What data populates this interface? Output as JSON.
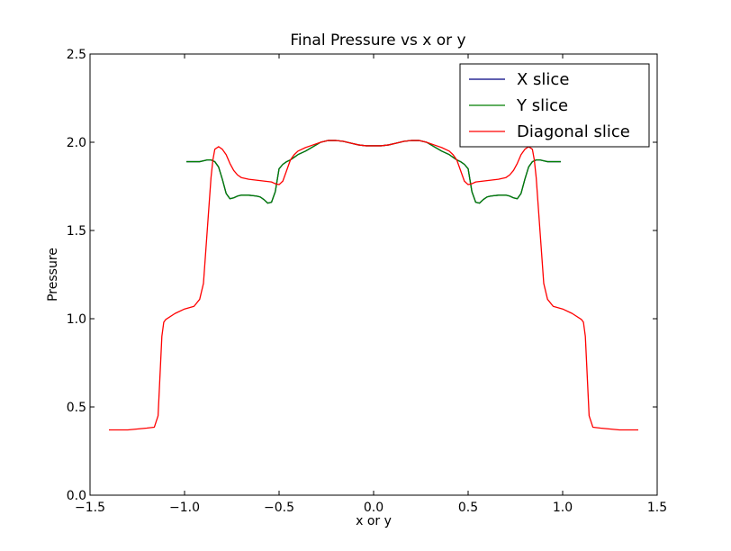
{
  "chart_data": {
    "type": "line",
    "title": "Final Pressure vs x or y",
    "xlabel": "x or y",
    "ylabel": "Pressure",
    "xlim": [
      -1.5,
      1.5
    ],
    "ylim": [
      0.0,
      2.5
    ],
    "xticks": [
      -1.5,
      -1.0,
      -0.5,
      0.0,
      0.5,
      1.0,
      1.5
    ],
    "xtick_labels": [
      "−1.5",
      "−1.0",
      "−0.5",
      "0.0",
      "0.5",
      "1.0",
      "1.5"
    ],
    "yticks": [
      0.0,
      0.5,
      1.0,
      1.5,
      2.0,
      2.5
    ],
    "ytick_labels": [
      "0.0",
      "0.5",
      "1.0",
      "1.5",
      "2.0",
      "2.5"
    ],
    "grid": false,
    "legend_position": "top-right",
    "series": [
      {
        "name": "X slice",
        "color": "#000080",
        "x": [
          -0.99,
          -0.95,
          -0.92,
          -0.9,
          -0.88,
          -0.86,
          -0.84,
          -0.82,
          -0.8,
          -0.78,
          -0.76,
          -0.74,
          -0.72,
          -0.7,
          -0.66,
          -0.62,
          -0.6,
          -0.58,
          -0.56,
          -0.54,
          -0.52,
          -0.5,
          -0.48,
          -0.46,
          -0.44,
          -0.42,
          -0.4,
          -0.36,
          -0.32,
          -0.28,
          -0.24,
          -0.2,
          -0.16,
          -0.12,
          -0.08,
          -0.04,
          0.0,
          0.04,
          0.08,
          0.12,
          0.16,
          0.2,
          0.24,
          0.28,
          0.32,
          0.36,
          0.4,
          0.42,
          0.44,
          0.46,
          0.48,
          0.5,
          0.52,
          0.54,
          0.56,
          0.58,
          0.6,
          0.62,
          0.66,
          0.7,
          0.72,
          0.74,
          0.76,
          0.78,
          0.8,
          0.82,
          0.84,
          0.86,
          0.88,
          0.9,
          0.92,
          0.95,
          0.99
        ],
        "y": [
          1.89,
          1.89,
          1.89,
          1.895,
          1.9,
          1.9,
          1.89,
          1.86,
          1.79,
          1.71,
          1.68,
          1.685,
          1.695,
          1.7,
          1.7,
          1.695,
          1.69,
          1.675,
          1.655,
          1.66,
          1.72,
          1.85,
          1.875,
          1.89,
          1.9,
          1.915,
          1.93,
          1.95,
          1.975,
          2.0,
          2.01,
          2.01,
          2.005,
          1.995,
          1.985,
          1.98,
          1.98,
          1.98,
          1.985,
          1.995,
          2.005,
          2.01,
          2.01,
          2.0,
          1.975,
          1.95,
          1.93,
          1.915,
          1.9,
          1.89,
          1.875,
          1.85,
          1.72,
          1.66,
          1.655,
          1.675,
          1.69,
          1.695,
          1.7,
          1.7,
          1.695,
          1.685,
          1.68,
          1.71,
          1.79,
          1.86,
          1.89,
          1.9,
          1.9,
          1.895,
          1.89,
          1.89,
          1.89
        ]
      },
      {
        "name": "Y slice",
        "color": "#007f00",
        "x": [
          -0.99,
          -0.95,
          -0.92,
          -0.9,
          -0.88,
          -0.86,
          -0.84,
          -0.82,
          -0.8,
          -0.78,
          -0.76,
          -0.74,
          -0.72,
          -0.7,
          -0.66,
          -0.62,
          -0.6,
          -0.58,
          -0.56,
          -0.54,
          -0.52,
          -0.5,
          -0.48,
          -0.46,
          -0.44,
          -0.42,
          -0.4,
          -0.36,
          -0.32,
          -0.28,
          -0.24,
          -0.2,
          -0.16,
          -0.12,
          -0.08,
          -0.04,
          0.0,
          0.04,
          0.08,
          0.12,
          0.16,
          0.2,
          0.24,
          0.28,
          0.32,
          0.36,
          0.4,
          0.42,
          0.44,
          0.46,
          0.48,
          0.5,
          0.52,
          0.54,
          0.56,
          0.58,
          0.6,
          0.62,
          0.66,
          0.7,
          0.72,
          0.74,
          0.76,
          0.78,
          0.8,
          0.82,
          0.84,
          0.86,
          0.88,
          0.9,
          0.92,
          0.95,
          0.99
        ],
        "y": [
          1.89,
          1.89,
          1.89,
          1.895,
          1.9,
          1.9,
          1.89,
          1.86,
          1.79,
          1.71,
          1.68,
          1.685,
          1.695,
          1.7,
          1.7,
          1.695,
          1.69,
          1.675,
          1.655,
          1.66,
          1.72,
          1.85,
          1.875,
          1.89,
          1.9,
          1.915,
          1.93,
          1.95,
          1.975,
          2.0,
          2.01,
          2.01,
          2.005,
          1.995,
          1.985,
          1.98,
          1.98,
          1.98,
          1.985,
          1.995,
          2.005,
          2.01,
          2.01,
          2.0,
          1.975,
          1.95,
          1.93,
          1.915,
          1.9,
          1.89,
          1.875,
          1.85,
          1.72,
          1.66,
          1.655,
          1.675,
          1.69,
          1.695,
          1.7,
          1.7,
          1.695,
          1.685,
          1.68,
          1.71,
          1.79,
          1.86,
          1.89,
          1.9,
          1.9,
          1.895,
          1.89,
          1.89,
          1.89
        ]
      },
      {
        "name": "Diagonal slice",
        "color": "#ff0000",
        "x": [
          -1.4,
          -1.3,
          -1.2,
          -1.16,
          -1.14,
          -1.12,
          -1.11,
          -1.1,
          -1.05,
          -1.0,
          -0.95,
          -0.92,
          -0.9,
          -0.88,
          -0.86,
          -0.85,
          -0.84,
          -0.82,
          -0.8,
          -0.78,
          -0.76,
          -0.74,
          -0.72,
          -0.7,
          -0.66,
          -0.62,
          -0.58,
          -0.54,
          -0.52,
          -0.5,
          -0.48,
          -0.46,
          -0.44,
          -0.42,
          -0.4,
          -0.36,
          -0.32,
          -0.28,
          -0.24,
          -0.2,
          -0.16,
          -0.12,
          -0.08,
          -0.04,
          0.0,
          0.04,
          0.08,
          0.12,
          0.16,
          0.2,
          0.24,
          0.28,
          0.32,
          0.36,
          0.4,
          0.42,
          0.44,
          0.46,
          0.48,
          0.5,
          0.52,
          0.54,
          0.58,
          0.62,
          0.66,
          0.7,
          0.72,
          0.74,
          0.76,
          0.78,
          0.8,
          0.82,
          0.84,
          0.85,
          0.86,
          0.88,
          0.9,
          0.92,
          0.95,
          1.0,
          1.05,
          1.1,
          1.11,
          1.12,
          1.14,
          1.16,
          1.2,
          1.3,
          1.4
        ],
        "y": [
          0.37,
          0.37,
          0.38,
          0.385,
          0.45,
          0.9,
          0.98,
          0.995,
          1.03,
          1.055,
          1.07,
          1.11,
          1.2,
          1.5,
          1.8,
          1.9,
          1.96,
          1.975,
          1.96,
          1.93,
          1.88,
          1.84,
          1.815,
          1.8,
          1.79,
          1.785,
          1.78,
          1.775,
          1.765,
          1.76,
          1.78,
          1.84,
          1.9,
          1.93,
          1.95,
          1.97,
          1.985,
          2.0,
          2.01,
          2.01,
          2.005,
          1.995,
          1.985,
          1.98,
          1.98,
          1.98,
          1.985,
          1.995,
          2.005,
          2.01,
          2.01,
          2.0,
          1.985,
          1.97,
          1.95,
          1.93,
          1.9,
          1.84,
          1.78,
          1.76,
          1.765,
          1.775,
          1.78,
          1.785,
          1.79,
          1.8,
          1.815,
          1.84,
          1.88,
          1.93,
          1.96,
          1.975,
          1.96,
          1.9,
          1.8,
          1.5,
          1.2,
          1.11,
          1.07,
          1.055,
          1.03,
          0.995,
          0.98,
          0.9,
          0.45,
          0.385,
          0.38,
          0.37,
          0.37
        ]
      }
    ]
  }
}
